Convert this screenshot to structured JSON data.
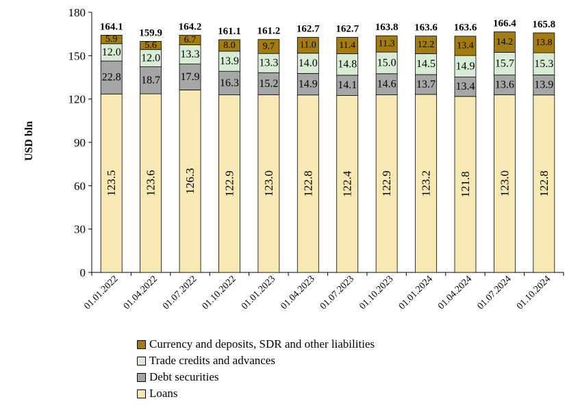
{
  "chart_data": {
    "type": "bar",
    "stacked": true,
    "ylabel": "USD bln",
    "ylim": [
      0,
      180
    ],
    "yticks": [
      0,
      30,
      60,
      90,
      120,
      150,
      180
    ],
    "categories": [
      "01.01.2022",
      "01.04.2022",
      "01.07.2022",
      "01.10.2022",
      "01.01.2023",
      "01.04.2023",
      "01.07.2023",
      "01.10.2023",
      "01.01.2024",
      "01.04.2024",
      "01.07.2024",
      "01.10.2024"
    ],
    "series": [
      {
        "name": "Loans",
        "color": "#f7e8b4",
        "values": [
          123.5,
          123.6,
          126.3,
          122.9,
          123.0,
          122.8,
          122.4,
          122.9,
          123.2,
          121.8,
          123.0,
          122.8
        ]
      },
      {
        "name": "Debt securities",
        "color": "#a6a6a6",
        "values": [
          22.8,
          18.7,
          17.9,
          16.3,
          15.2,
          14.9,
          14.1,
          14.6,
          13.7,
          13.4,
          13.6,
          13.9
        ]
      },
      {
        "name": "Trade credits and advances",
        "color": "#d8ecd5",
        "values": [
          12.0,
          12.0,
          13.3,
          13.9,
          13.3,
          14.0,
          14.8,
          15.0,
          14.5,
          14.9,
          15.7,
          15.3
        ]
      },
      {
        "name": "Currency and deposits, SDR and other liabilities",
        "color": "#a37c0f",
        "values": [
          5.9,
          5.6,
          6.7,
          8.0,
          9.7,
          11.0,
          11.4,
          11.3,
          12.2,
          13.4,
          14.2,
          13.8
        ]
      }
    ],
    "totals": [
      164.1,
      159.9,
      164.2,
      161.1,
      161.2,
      162.7,
      162.7,
      163.8,
      163.6,
      163.6,
      166.4,
      165.8
    ],
    "value_labels": [
      [
        "123.5",
        "123.6",
        "126.3",
        "122.9",
        "123.0",
        "122.8",
        "122.4",
        "122.9",
        "123.2",
        "121.8",
        "123.0",
        "122.8"
      ],
      [
        "22.8",
        "18.7",
        "17.9",
        "16.3",
        "15.2",
        "14.9",
        "14.1",
        "14.6",
        "13.7",
        "13.4",
        "13.6",
        "13.9"
      ],
      [
        "12.0",
        "12.0",
        "13.3",
        "13.9",
        "13.3",
        "14.0",
        "14.8",
        "15.0",
        "14.5",
        "14.9",
        "15.7",
        "15.3"
      ],
      [
        "5.9",
        "5.6",
        "6.7",
        "8.0",
        "9.7",
        "11.0",
        "11.4",
        "11.3",
        "12.2",
        "13.4",
        "14.2",
        "13.8"
      ]
    ],
    "total_labels": [
      "164.1",
      "159.9",
      "164.2",
      "161.1",
      "161.2",
      "162.7",
      "162.7",
      "163.8",
      "163.6",
      "163.6",
      "166.4",
      "165.8"
    ],
    "legend": {
      "placement": "bottom",
      "entries": [
        "Currency and deposits, SDR and other liabilities",
        "Trade credits and advances",
        "Debt securities",
        "Loans"
      ],
      "colors": [
        "#a37c0f",
        "#d8ecd5",
        "#a6a6a6",
        "#f7e8b4"
      ]
    }
  }
}
